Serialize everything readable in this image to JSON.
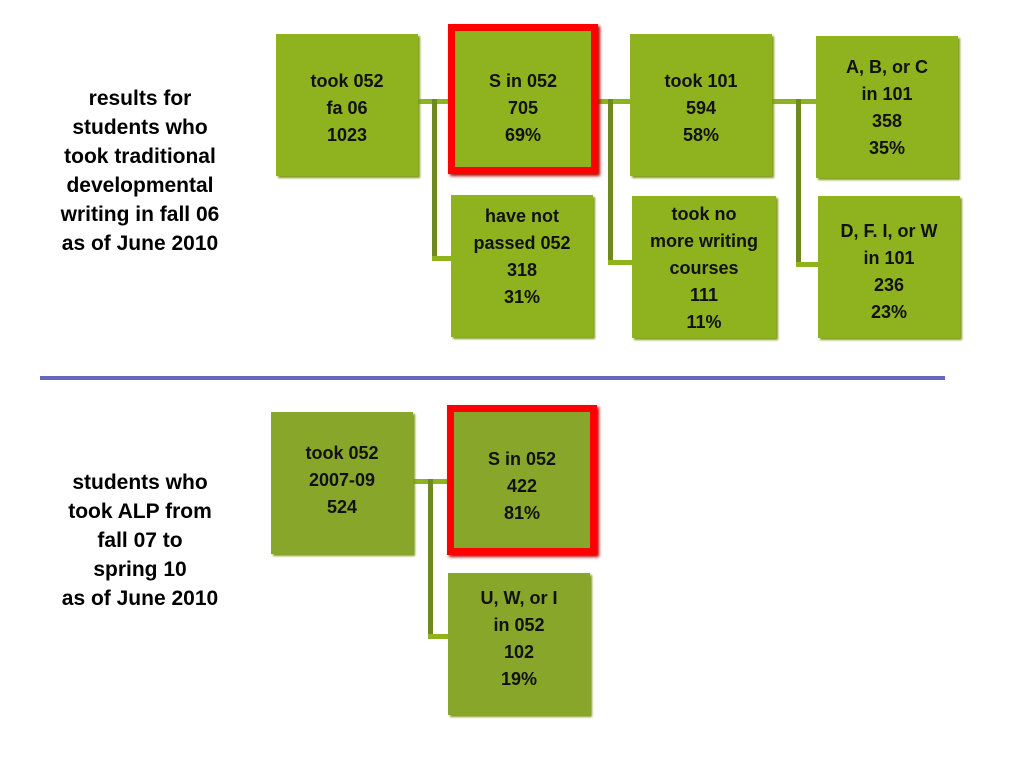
{
  "traditional": {
    "caption": [
      "results for",
      "students who",
      "took traditional",
      "developmental",
      "writing in fall 06",
      "as of June 2010"
    ],
    "boxes": {
      "took052": [
        "took 052",
        "fa 06",
        "1023"
      ],
      "s052": [
        "S in 052",
        "705",
        "69%"
      ],
      "notpassed": [
        "have not",
        "passed 052",
        "318",
        "31%"
      ],
      "took101": [
        "took 101",
        "594",
        "58%"
      ],
      "nomore": [
        "took no",
        "more writing",
        "courses",
        "111",
        "11%"
      ],
      "abc": [
        "A, B, or C",
        "in 101",
        "358",
        "35%"
      ],
      "dfiw": [
        "D, F. I, or W",
        "in 101",
        "236",
        "23%"
      ]
    }
  },
  "alp": {
    "caption": [
      "students who",
      "took ALP from",
      "fall 07 to",
      "spring 10",
      "as of June 2010"
    ],
    "boxes": {
      "took052": [
        "took 052",
        "2007-09",
        "524"
      ],
      "s052": [
        "S in 052",
        "422",
        "81%"
      ],
      "uwi": [
        "U, W, or I",
        "in 052",
        "102",
        "19%"
      ]
    }
  },
  "colors": {
    "box_green": "#8fb31e",
    "highlight_red": "#ff0000",
    "divider_blue": "#6666bb"
  }
}
